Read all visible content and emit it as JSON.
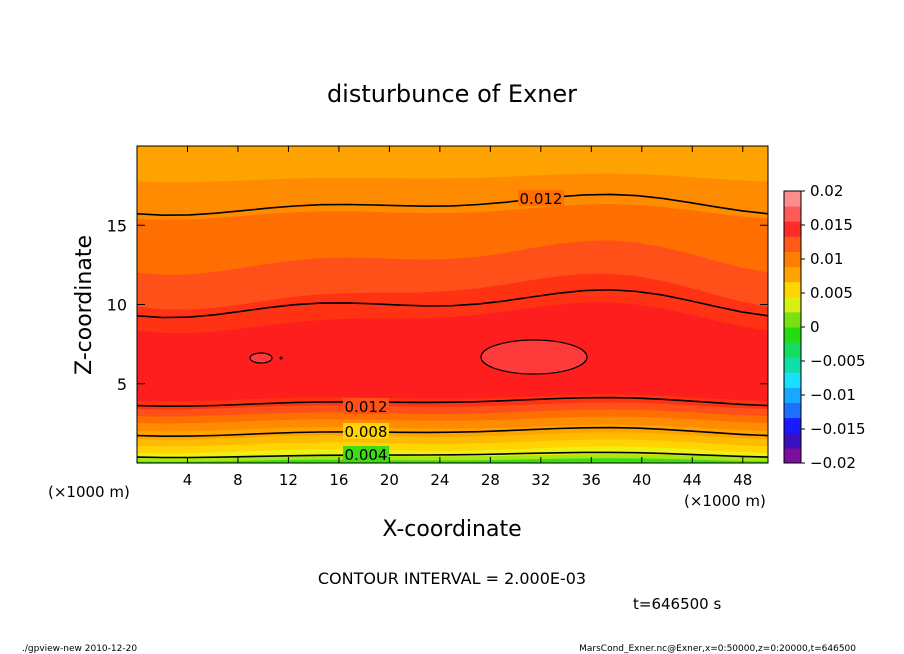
{
  "chart_data": {
    "type": "heatmap",
    "title": "disturbunce of Exner",
    "xlabel": "X-coordinate",
    "ylabel": "Z-coordinate",
    "x_unit_label": "(×1000 m)",
    "x_unit_label_right": "(×1000 m)",
    "xlim": [
      0,
      50
    ],
    "ylim": [
      0,
      20
    ],
    "x_ticks": [
      4,
      8,
      12,
      16,
      20,
      24,
      28,
      32,
      36,
      40,
      44,
      48
    ],
    "y_ticks": [
      5,
      10,
      15
    ],
    "colorbar": {
      "ticks": [
        "0.02",
        "0.015",
        "0.01",
        "0.005",
        "0",
        "−0.005",
        "−0.01",
        "−0.015",
        "−0.02"
      ],
      "range": [
        -0.02,
        0.02
      ],
      "colors": [
        "#7a0fa0",
        "#3c0fc0",
        "#1a1aff",
        "#1f6fff",
        "#19a8ff",
        "#19e0ff",
        "#11dfa8",
        "#12dd5e",
        "#23dd12",
        "#7ae012",
        "#d5f012",
        "#ffd400",
        "#ffa300",
        "#ff7d00",
        "#ff5a1a",
        "#ff2a2a",
        "#ff5a5a",
        "#ff8c8c"
      ]
    },
    "contour_labels": [
      "0.012",
      "0.012",
      "0.008",
      "0.004"
    ],
    "contour_interval_text": "CONTOUR INTERVAL = 2.000E-03",
    "time_text": "t=646500 s"
  },
  "footer": {
    "left": "./gpview-new  2010-12-20",
    "right": "MarsCond_Exner.nc@Exner,x=0:50000,z=0:20000,t=646500"
  },
  "colors": {
    "band_0": "#3edc14",
    "band_1": "#a8e614",
    "band_2": "#ecf014",
    "band_3": "#ffd400",
    "band_4": "#ffbb00",
    "band_5": "#ffa300",
    "band_6": "#ff8c00",
    "band_7": "#ff6e00",
    "band_8": "#ff5019",
    "band_9": "#ff3214",
    "band_10": "#ff1e1e",
    "band_11": "#ff3a3a"
  }
}
